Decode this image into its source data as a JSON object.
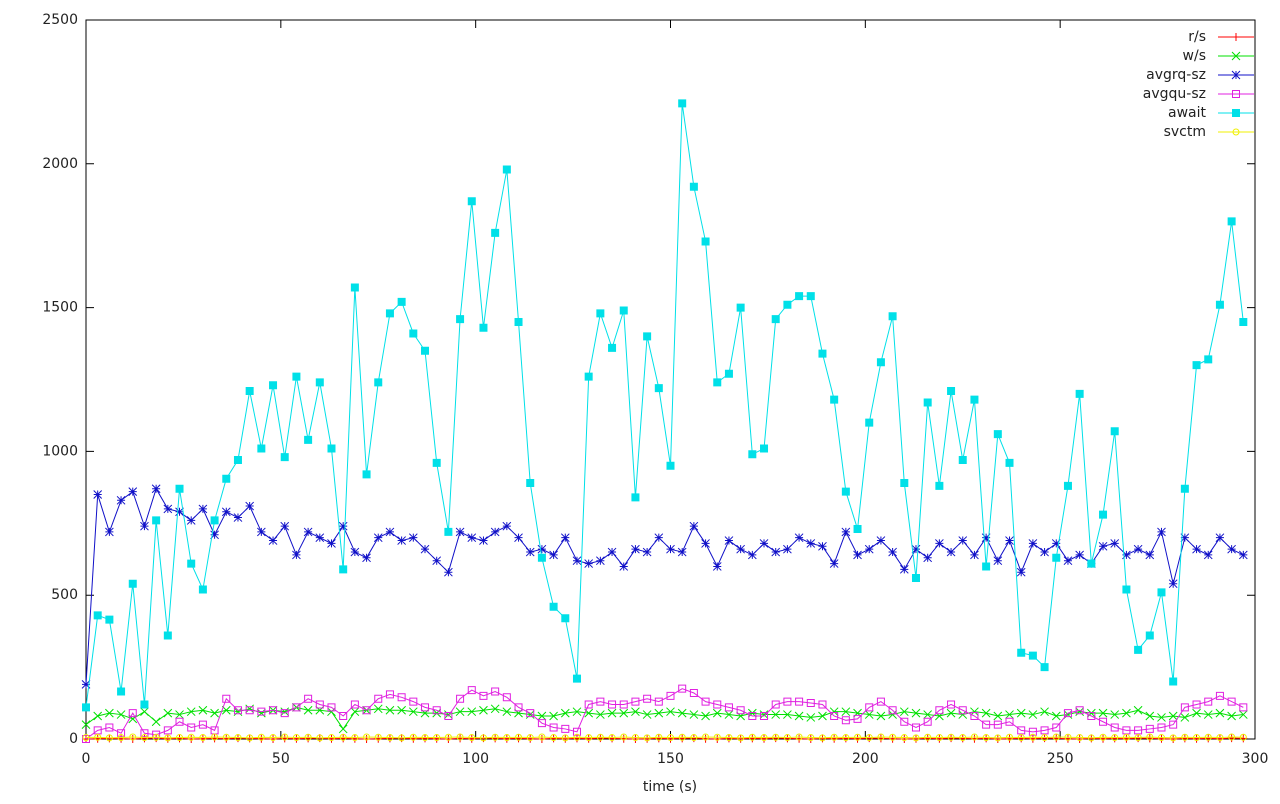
{
  "chart_data": {
    "type": "line",
    "xlabel": "time (s)",
    "x": [
      0,
      3,
      6,
      9,
      12,
      15,
      18,
      21,
      24,
      27,
      30,
      33,
      36,
      39,
      42,
      45,
      48,
      51,
      54,
      57,
      60,
      63,
      66,
      69,
      72,
      75,
      78,
      81,
      84,
      87,
      90,
      93,
      96,
      99,
      102,
      105,
      108,
      111,
      114,
      117,
      120,
      123,
      126,
      129,
      132,
      135,
      138,
      141,
      144,
      147,
      150,
      153,
      156,
      159,
      162,
      165,
      168,
      171,
      174,
      177,
      180,
      183,
      186,
      189,
      192,
      195,
      198,
      201,
      204,
      207,
      210,
      213,
      216,
      219,
      222,
      225,
      228,
      231,
      234,
      237,
      240,
      243,
      246,
      249,
      252,
      255,
      258,
      261,
      264,
      267,
      270,
      273,
      276,
      279,
      282,
      285,
      288,
      291,
      294,
      297
    ],
    "xlim": [
      0,
      300
    ],
    "xticks": [
      0,
      50,
      100,
      150,
      200,
      250,
      300
    ],
    "ylim": [
      0,
      2500
    ],
    "yticks": [
      0,
      500,
      1000,
      1500,
      2000,
      2500
    ],
    "grid": false,
    "legend": "top-right",
    "series": [
      {
        "name": "r/s",
        "color": "#ff0000",
        "marker": "plus",
        "values": [
          0,
          1,
          2,
          1,
          0,
          2,
          3,
          1,
          2,
          0,
          1,
          2,
          1,
          3,
          2,
          1,
          0,
          2,
          1,
          2,
          3,
          1,
          2,
          1,
          0,
          1,
          2,
          3,
          1,
          2,
          1,
          0,
          2,
          1,
          3,
          2,
          1,
          2,
          1,
          0,
          2,
          1,
          2,
          1,
          3,
          2,
          1,
          0,
          1,
          2,
          1,
          2,
          3,
          1,
          0,
          2,
          1,
          2,
          1,
          3,
          2,
          1,
          0,
          2,
          1,
          2,
          1,
          3,
          2,
          1,
          0,
          1,
          2,
          1,
          3,
          2,
          1,
          2,
          0,
          1,
          2,
          1,
          3,
          2,
          1,
          0,
          2,
          1,
          2,
          1,
          3,
          2,
          1,
          0,
          2,
          1,
          2,
          1,
          3,
          2
        ]
      },
      {
        "name": "w/s",
        "color": "#00e000",
        "marker": "cross",
        "values": [
          50,
          80,
          90,
          85,
          70,
          95,
          60,
          90,
          85,
          95,
          100,
          90,
          100,
          95,
          105,
          90,
          100,
          95,
          110,
          100,
          100,
          95,
          35,
          95,
          100,
          105,
          100,
          100,
          95,
          90,
          90,
          85,
          95,
          95,
          100,
          105,
          95,
          90,
          85,
          80,
          80,
          90,
          95,
          90,
          85,
          90,
          90,
          95,
          85,
          90,
          95,
          90,
          85,
          80,
          90,
          85,
          80,
          90,
          85,
          85,
          85,
          80,
          75,
          80,
          95,
          95,
          90,
          85,
          80,
          85,
          95,
          90,
          85,
          80,
          90,
          85,
          95,
          90,
          80,
          85,
          90,
          85,
          95,
          80,
          85,
          95,
          90,
          90,
          85,
          90,
          100,
          80,
          75,
          80,
          75,
          90,
          85,
          90,
          80,
          85
        ]
      },
      {
        "name": "avgrq-sz",
        "color": "#1010c8",
        "marker": "star",
        "values": [
          190,
          850,
          720,
          830,
          860,
          740,
          870,
          800,
          790,
          760,
          800,
          710,
          790,
          770,
          810,
          720,
          690,
          740,
          640,
          720,
          700,
          680,
          740,
          650,
          630,
          700,
          720,
          690,
          700,
          660,
          620,
          580,
          720,
          700,
          690,
          720,
          740,
          700,
          650,
          660,
          640,
          700,
          620,
          610,
          620,
          650,
          600,
          660,
          650,
          700,
          660,
          650,
          740,
          680,
          600,
          690,
          660,
          640,
          680,
          650,
          660,
          700,
          680,
          670,
          610,
          720,
          640,
          660,
          690,
          650,
          590,
          660,
          630,
          680,
          650,
          690,
          640,
          700,
          620,
          690,
          580,
          680,
          650,
          680,
          620,
          640,
          610,
          670,
          680,
          640,
          660,
          640,
          720,
          540,
          700,
          660,
          640,
          700,
          660,
          640
        ]
      },
      {
        "name": "avgqu-sz",
        "color": "#e020e0",
        "marker": "square-open",
        "values": [
          0,
          30,
          40,
          20,
          90,
          20,
          15,
          30,
          60,
          40,
          50,
          30,
          140,
          100,
          100,
          95,
          100,
          90,
          110,
          140,
          120,
          110,
          80,
          120,
          100,
          140,
          155,
          145,
          130,
          110,
          100,
          80,
          140,
          170,
          150,
          165,
          145,
          110,
          90,
          55,
          40,
          35,
          25,
          120,
          130,
          120,
          120,
          130,
          140,
          130,
          150,
          175,
          160,
          130,
          120,
          110,
          100,
          80,
          80,
          120,
          130,
          130,
          125,
          120,
          80,
          65,
          70,
          110,
          130,
          100,
          60,
          40,
          60,
          100,
          120,
          100,
          80,
          50,
          50,
          60,
          30,
          25,
          30,
          40,
          90,
          100,
          80,
          60,
          40,
          30,
          30,
          35,
          40,
          50,
          110,
          120,
          130,
          150,
          130,
          110
        ]
      },
      {
        "name": "await",
        "color": "#00e0e8",
        "marker": "square",
        "values": [
          110,
          430,
          415,
          165,
          540,
          120,
          760,
          360,
          870,
          610,
          520,
          760,
          905,
          970,
          1210,
          1010,
          1230,
          980,
          1260,
          1040,
          1240,
          1010,
          590,
          1570,
          920,
          1240,
          1480,
          1520,
          1410,
          1350,
          960,
          720,
          1460,
          1870,
          1430,
          1760,
          1980,
          1450,
          890,
          630,
          460,
          420,
          210,
          1260,
          1480,
          1360,
          1490,
          840,
          1400,
          1220,
          950,
          2210,
          1920,
          1730,
          1240,
          1270,
          1500,
          990,
          1010,
          1460,
          1510,
          1540,
          1540,
          1340,
          1180,
          860,
          730,
          1100,
          1310,
          1470,
          890,
          560,
          1170,
          880,
          1210,
          970,
          1180,
          600,
          1060,
          960,
          300,
          290,
          250,
          630,
          880,
          1200,
          610,
          780,
          1070,
          520,
          310,
          360,
          510,
          200,
          870,
          1300,
          1320,
          1510,
          1800,
          1450
        ]
      },
      {
        "name": "svctm",
        "color": "#f0f000",
        "marker": "circle-open",
        "values": [
          5,
          6,
          4,
          5,
          7,
          5,
          6,
          4,
          5,
          6,
          5,
          7,
          6,
          5,
          4,
          6,
          5,
          7,
          5,
          6,
          4,
          5,
          6,
          5,
          7,
          6,
          5,
          4,
          6,
          5,
          5,
          6,
          7,
          5,
          4,
          6,
          5,
          6,
          5,
          7,
          5,
          4,
          6,
          5,
          6,
          5,
          7,
          5,
          4,
          6,
          5,
          6,
          5,
          7,
          6,
          5,
          4,
          6,
          5,
          6,
          5,
          7,
          5,
          4,
          6,
          5,
          6,
          5,
          7,
          6,
          5,
          4,
          6,
          5,
          6,
          5,
          7,
          5,
          4,
          6,
          5,
          6,
          5,
          7,
          6,
          5,
          4,
          6,
          5,
          6,
          5,
          7,
          5,
          4,
          6,
          5,
          6,
          5,
          7,
          6
        ]
      }
    ]
  }
}
